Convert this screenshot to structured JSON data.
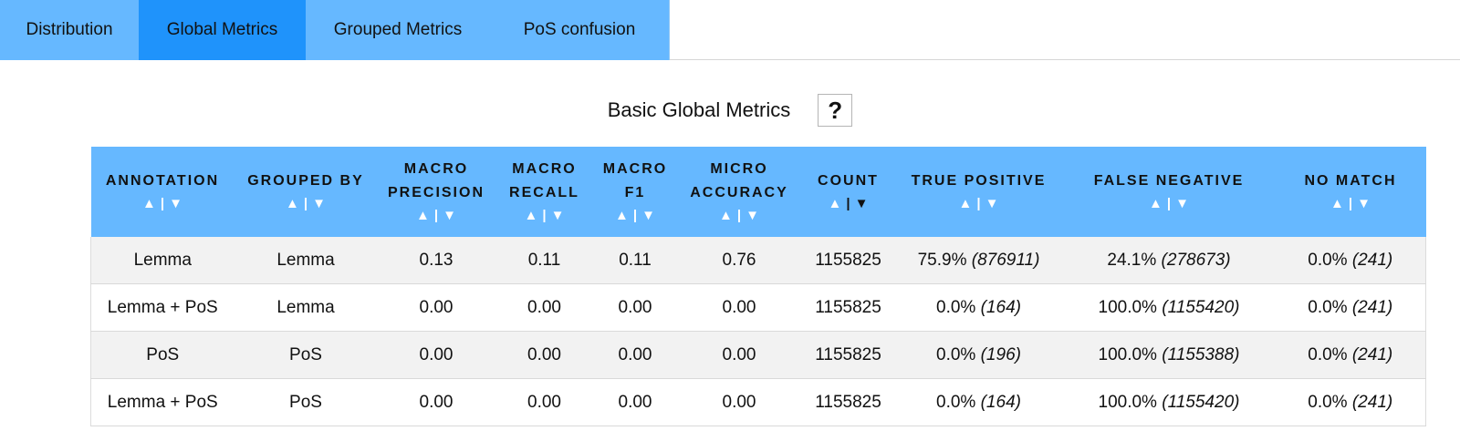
{
  "tabs": [
    {
      "label": "Distribution",
      "active": false
    },
    {
      "label": "Global Metrics",
      "active": true
    },
    {
      "label": "Grouped Metrics",
      "active": false
    },
    {
      "label": "PoS confusion",
      "active": false
    }
  ],
  "section": {
    "title": "Basic Global Metrics",
    "help_label": "?"
  },
  "sort": {
    "asc": "▲",
    "desc": "▼",
    "separator": "|"
  },
  "table": {
    "columns": [
      {
        "line1": "Annotation",
        "line2": ""
      },
      {
        "line1": "Grouped by",
        "line2": ""
      },
      {
        "line1": "Macro",
        "line2": "Precision"
      },
      {
        "line1": "Macro",
        "line2": "Recall"
      },
      {
        "line1": "Macro",
        "line2": "F1"
      },
      {
        "line1": "Micro",
        "line2": "Accuracy"
      },
      {
        "line1": "Count",
        "line2": ""
      },
      {
        "line1": "True positive",
        "line2": ""
      },
      {
        "line1": "False negative",
        "line2": ""
      },
      {
        "line1": "No match",
        "line2": ""
      }
    ],
    "active_sort": {
      "column": 6,
      "direction": "desc"
    },
    "rows": [
      {
        "annotation": "Lemma",
        "grouped_by": "Lemma",
        "macro_precision": "0.13",
        "macro_recall": "0.11",
        "macro_f1": "0.11",
        "micro_accuracy": "0.76",
        "count": "1155825",
        "tp_pct": "75.9%",
        "tp_count": "(876911)",
        "fn_pct": "24.1%",
        "fn_count": "(278673)",
        "nm_pct": "0.0%",
        "nm_count": "(241)"
      },
      {
        "annotation": "Lemma + PoS",
        "grouped_by": "Lemma",
        "macro_precision": "0.00",
        "macro_recall": "0.00",
        "macro_f1": "0.00",
        "micro_accuracy": "0.00",
        "count": "1155825",
        "tp_pct": "0.0%",
        "tp_count": "(164)",
        "fn_pct": "100.0%",
        "fn_count": "(1155420)",
        "nm_pct": "0.0%",
        "nm_count": "(241)"
      },
      {
        "annotation": "PoS",
        "grouped_by": "PoS",
        "macro_precision": "0.00",
        "macro_recall": "0.00",
        "macro_f1": "0.00",
        "micro_accuracy": "0.00",
        "count": "1155825",
        "tp_pct": "0.0%",
        "tp_count": "(196)",
        "fn_pct": "100.0%",
        "fn_count": "(1155388)",
        "nm_pct": "0.0%",
        "nm_count": "(241)"
      },
      {
        "annotation": "Lemma + PoS",
        "grouped_by": "PoS",
        "macro_precision": "0.00",
        "macro_recall": "0.00",
        "macro_f1": "0.00",
        "micro_accuracy": "0.00",
        "count": "1155825",
        "tp_pct": "0.0%",
        "tp_count": "(164)",
        "fn_pct": "100.0%",
        "fn_count": "(1155420)",
        "nm_pct": "0.0%",
        "nm_count": "(241)"
      }
    ]
  },
  "colors": {
    "tab_bg": "#66b8ff",
    "tab_active_bg": "#1f93fb",
    "header_bg": "#66b8ff",
    "row_alt_bg": "#f2f2f2"
  }
}
